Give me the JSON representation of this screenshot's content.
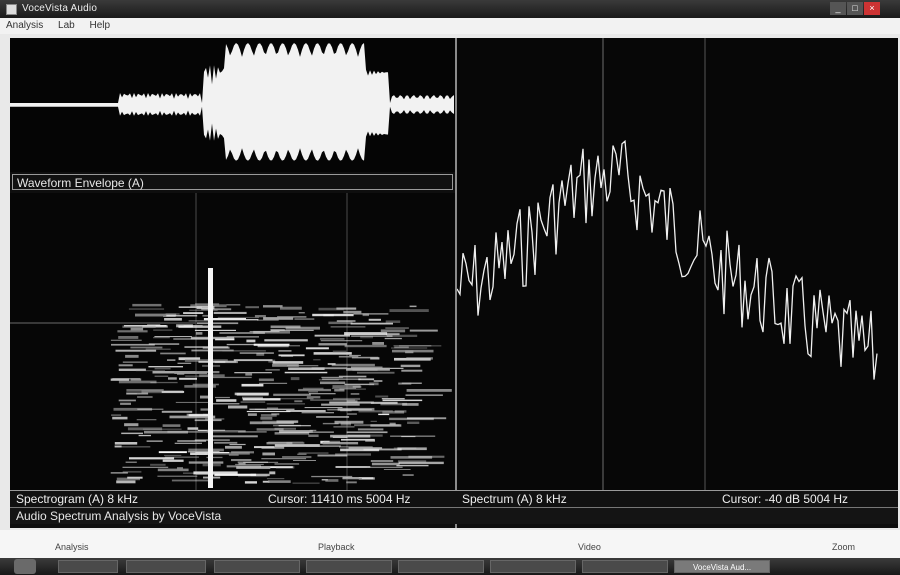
{
  "window": {
    "title": "VoceVista Audio",
    "controls": [
      "_",
      "□",
      "×"
    ]
  },
  "menu": [
    "Analysis",
    "Lab",
    "Help"
  ],
  "panes": {
    "waveform_label": "Waveform Envelope (A)",
    "spectrogram_status": "Spectrogram (A)   8 kHz",
    "spectrogram_cursor": "Cursor: 11410 ms  5004 Hz",
    "spectrum_status": "Spectrum (A)   8 kHz",
    "spectrum_cursor": "Cursor: -40 dB  5004 Hz"
  },
  "app_status": "Audio Spectrum Analysis by VoceVista",
  "controls": [
    "Analysis",
    "Playback",
    "Video",
    "Zoom"
  ],
  "taskbar": {
    "items": [
      "",
      "",
      "",
      "",
      "",
      "",
      "",
      "VoceVista Aud..."
    ],
    "active_index": 7,
    "tray_time": ""
  },
  "colors": {
    "background": "#0e0e0e",
    "trace": "#f2f2f2",
    "divider": "#8a8a8a"
  }
}
